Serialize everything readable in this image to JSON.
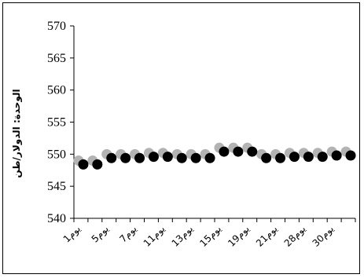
{
  "chart_data": {
    "type": "scatter",
    "title": "",
    "ylabel": "الوحدة: الدولار/طن",
    "xlabel": "",
    "ylim": [
      540,
      570
    ],
    "yticks": [
      540,
      545,
      550,
      555,
      560,
      565,
      570
    ],
    "x_tick_labels": [
      "1يوم",
      "5يوم",
      "7يوم",
      "11يوم",
      "13يوم",
      "15يوم",
      "19يوم",
      "21يوم",
      "28يوم",
      "30يوم"
    ],
    "categories_count": 20,
    "grid": false,
    "legend": "none",
    "series": [
      {
        "color": "#000000",
        "values": [
          548.4,
          548.4,
          549.4,
          549.4,
          549.4,
          549.6,
          549.6,
          549.4,
          549.4,
          549.4,
          550.4,
          550.4,
          550.4,
          549.4,
          549.4,
          549.6,
          549.6,
          549.6,
          549.8,
          549.8
        ]
      },
      {
        "color": "#b3b3b3",
        "values": [
          549.0,
          549.0,
          550.0,
          550.0,
          550.0,
          550.2,
          550.2,
          550.0,
          550.0,
          550.0,
          551.0,
          551.0,
          551.0,
          550.0,
          550.0,
          550.2,
          550.2,
          550.2,
          550.4,
          550.4
        ]
      }
    ]
  }
}
